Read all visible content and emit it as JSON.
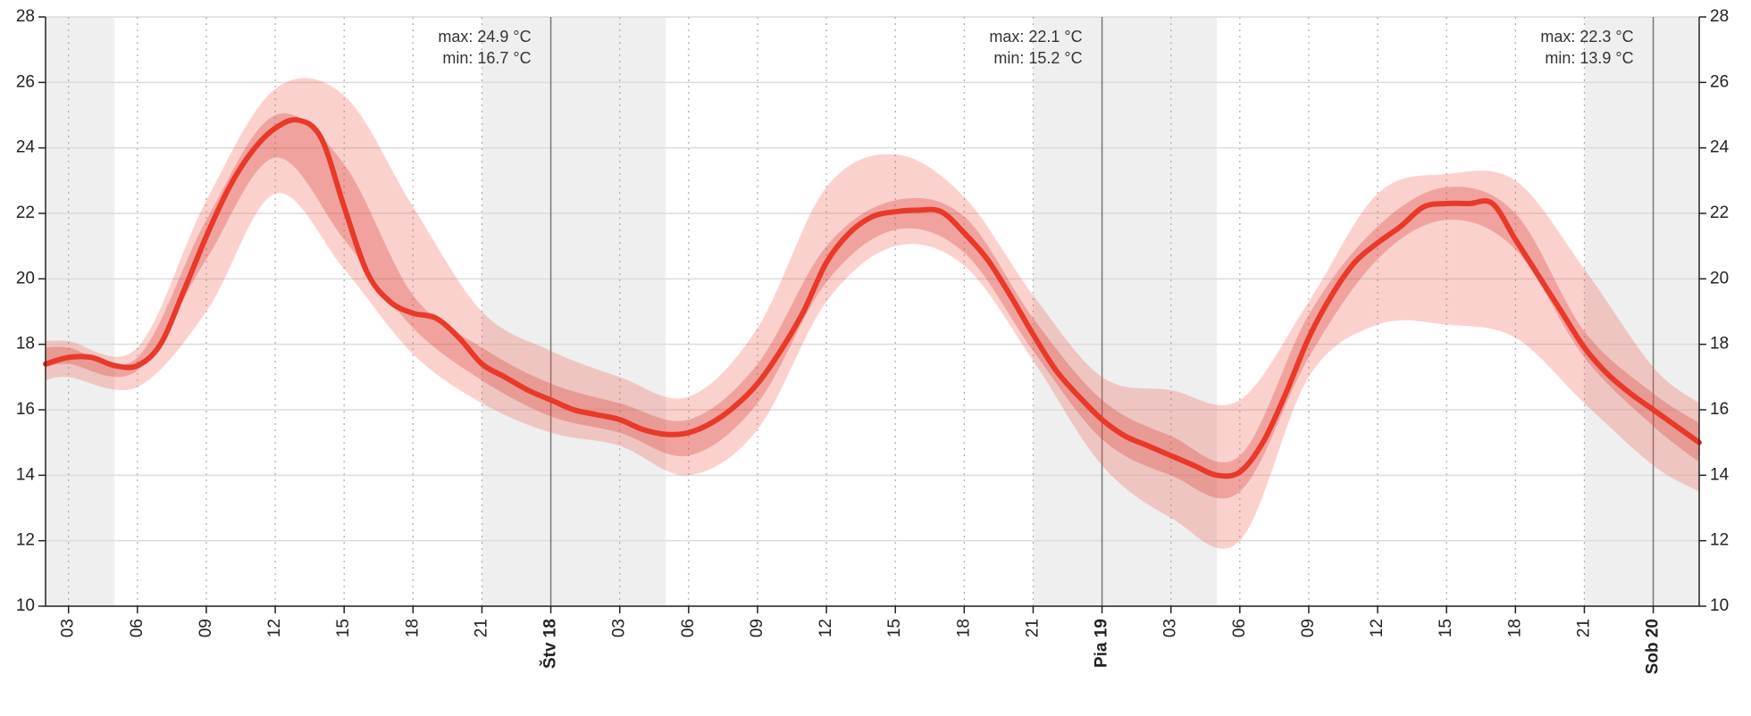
{
  "chart_data": {
    "type": "line",
    "xlim": [
      2,
      74
    ],
    "ylim": [
      10,
      28
    ],
    "yticks": [
      10,
      12,
      14,
      16,
      18,
      20,
      22,
      24,
      26,
      28
    ],
    "right_axis": true,
    "grid": true,
    "xticks": [
      {
        "value": 3,
        "label": "03"
      },
      {
        "value": 6,
        "label": "06"
      },
      {
        "value": 9,
        "label": "09"
      },
      {
        "value": 12,
        "label": "12"
      },
      {
        "value": 15,
        "label": "15"
      },
      {
        "value": 18,
        "label": "18"
      },
      {
        "value": 21,
        "label": "21"
      },
      {
        "value": 24,
        "label": "Štv 18"
      },
      {
        "value": 27,
        "label": "03"
      },
      {
        "value": 30,
        "label": "06"
      },
      {
        "value": 33,
        "label": "09"
      },
      {
        "value": 36,
        "label": "12"
      },
      {
        "value": 39,
        "label": "15"
      },
      {
        "value": 42,
        "label": "18"
      },
      {
        "value": 45,
        "label": "21"
      },
      {
        "value": 48,
        "label": "Pia 19"
      },
      {
        "value": 51,
        "label": "03"
      },
      {
        "value": 54,
        "label": "06"
      },
      {
        "value": 57,
        "label": "09"
      },
      {
        "value": 60,
        "label": "12"
      },
      {
        "value": 63,
        "label": "15"
      },
      {
        "value": 66,
        "label": "18"
      },
      {
        "value": 69,
        "label": "21"
      },
      {
        "value": 72,
        "label": "Sob 20"
      }
    ],
    "shaded_x": [
      [
        2,
        5
      ],
      [
        21,
        29
      ],
      [
        45,
        53
      ],
      [
        69,
        74
      ]
    ],
    "shade_color": "#efefef",
    "daily_labels": [
      [
        "max: 24.9 °C",
        "min: 16.7 °C"
      ],
      [
        "max: 22.1 °C",
        "min: 15.2 °C"
      ],
      [
        "max: 22.3 °C",
        "min: 13.9 °C"
      ]
    ],
    "x": [
      2,
      3,
      4,
      5,
      6,
      7,
      8,
      9,
      10,
      11,
      12,
      13,
      14,
      15,
      16,
      17,
      18,
      19,
      20,
      21,
      22,
      23,
      24,
      25,
      26,
      27,
      28,
      29,
      30,
      31,
      32,
      33,
      34,
      35,
      36,
      37,
      38,
      39,
      40,
      41,
      42,
      43,
      44,
      45,
      46,
      47,
      48,
      49,
      50,
      51,
      52,
      53,
      54,
      55,
      56,
      57,
      58,
      59,
      60,
      61,
      62,
      63,
      64,
      65,
      66,
      67,
      68,
      69,
      70,
      71,
      72,
      73,
      74
    ],
    "series": [
      {
        "color": "#e8392b",
        "values": [
          17.4,
          17.6,
          17.6,
          17.35,
          17.35,
          18.0,
          19.6,
          21.3,
          22.8,
          23.9,
          24.6,
          24.85,
          24.3,
          22.2,
          20.2,
          19.3,
          18.95,
          18.8,
          18.2,
          17.4,
          17.0,
          16.6,
          16.3,
          16.0,
          15.85,
          15.7,
          15.4,
          15.25,
          15.3,
          15.6,
          16.1,
          16.8,
          17.8,
          19.0,
          20.5,
          21.4,
          21.9,
          22.05,
          22.1,
          22.05,
          21.4,
          20.6,
          19.5,
          18.3,
          17.2,
          16.4,
          15.7,
          15.2,
          14.9,
          14.6,
          14.3,
          14.0,
          14.1,
          15.0,
          16.5,
          18.2,
          19.5,
          20.5,
          21.1,
          21.6,
          22.2,
          22.3,
          22.3,
          22.3,
          21.2,
          20.1,
          19.0,
          17.9,
          17.1,
          16.5,
          16.0,
          15.5,
          15.0
        ]
      }
    ],
    "bands": [
      {
        "color": "rgba(240,90,80,0.28)",
        "x": [
          2,
          3,
          6,
          9,
          12,
          15,
          18,
          21,
          24,
          27,
          30,
          33,
          36,
          39,
          42,
          45,
          48,
          51,
          54,
          57,
          60,
          63,
          66,
          69,
          72,
          74
        ],
        "lower": [
          16.9,
          17.0,
          16.7,
          19.0,
          22.6,
          20.3,
          17.7,
          16.2,
          15.3,
          14.9,
          14.0,
          15.4,
          19.3,
          21.0,
          20.4,
          17.5,
          14.3,
          12.7,
          12.0,
          17.0,
          18.6,
          18.6,
          18.2,
          16.2,
          14.3,
          13.5
        ],
        "upper": [
          18.1,
          18.1,
          17.9,
          22.4,
          25.8,
          25.6,
          22.2,
          19.0,
          17.8,
          17.0,
          16.4,
          18.5,
          22.8,
          23.8,
          22.5,
          19.5,
          17.0,
          16.6,
          16.3,
          19.3,
          22.6,
          23.2,
          23.0,
          20.3,
          17.3,
          16.2
        ]
      },
      {
        "color": "rgba(215,55,45,0.3)",
        "x": [
          2,
          3,
          6,
          9,
          12,
          15,
          18,
          21,
          24,
          27,
          30,
          33,
          36,
          39,
          42,
          45,
          48,
          51,
          54,
          57,
          60,
          63,
          66,
          69,
          72,
          74
        ],
        "lower": [
          17.3,
          17.4,
          17.2,
          20.6,
          23.7,
          21.2,
          18.5,
          16.9,
          15.8,
          15.3,
          14.6,
          16.2,
          19.9,
          21.5,
          20.8,
          17.8,
          15.1,
          14.0,
          13.5,
          17.6,
          20.6,
          21.8,
          20.9,
          17.6,
          15.5,
          14.4
        ],
        "upper": [
          17.9,
          17.9,
          17.6,
          21.8,
          25.0,
          23.5,
          19.5,
          17.9,
          16.8,
          16.2,
          15.7,
          17.4,
          21.0,
          22.4,
          21.9,
          18.8,
          16.3,
          15.2,
          14.6,
          18.9,
          21.6,
          22.8,
          22.0,
          18.4,
          16.5,
          15.6
        ]
      }
    ]
  }
}
